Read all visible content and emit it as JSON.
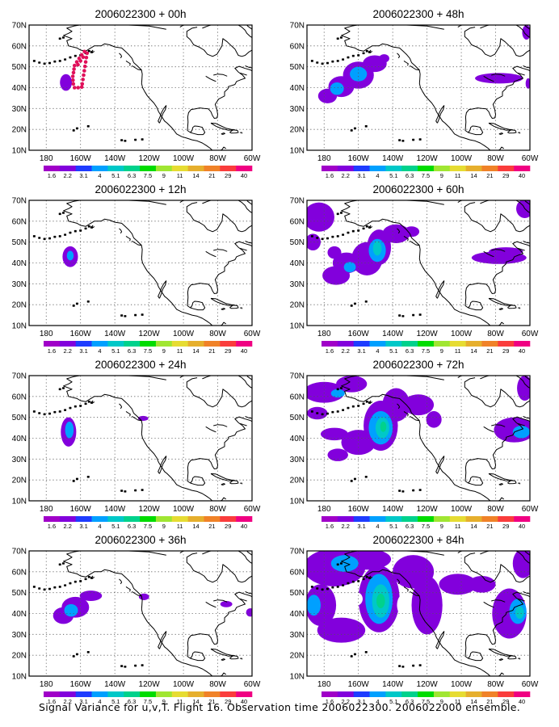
{
  "figure": {
    "caption": "Signal Variance for u,v,T. Flight 16. Observation time 2006022300. 2006022000 ensemble."
  },
  "axes": {
    "lat_ticks": [
      {
        "value": 10,
        "label": "10N"
      },
      {
        "value": 20,
        "label": "20N"
      },
      {
        "value": 30,
        "label": "30N"
      },
      {
        "value": 40,
        "label": "40N"
      },
      {
        "value": 50,
        "label": "50N"
      },
      {
        "value": 60,
        "label": "60N"
      },
      {
        "value": 70,
        "label": "70N"
      }
    ],
    "lon_ticks": [
      {
        "value": 180,
        "label": "180"
      },
      {
        "value": 200,
        "label": "160W"
      },
      {
        "value": 220,
        "label": "140W"
      },
      {
        "value": 240,
        "label": "120W"
      },
      {
        "value": 260,
        "label": "100W"
      },
      {
        "value": 280,
        "label": "80W"
      },
      {
        "value": 300,
        "label": "60W"
      }
    ],
    "lon_range_deg_east": [
      170,
      300
    ],
    "lat_range": [
      10,
      70
    ],
    "grid": "dotted"
  },
  "colorbar": {
    "labels": [
      "1.6",
      "2.2",
      "3.1",
      "4",
      "5.1",
      "6.3",
      "7.5",
      "9",
      "11",
      "14",
      "21",
      "29",
      "40"
    ],
    "colors": [
      "#a000c8",
      "#8200dc",
      "#1e3cff",
      "#00a0ff",
      "#00c8c8",
      "#00d28c",
      "#00dc00",
      "#a0e632",
      "#e6dc32",
      "#e6af2d",
      "#f08228",
      "#fa3c3c",
      "#f00082"
    ]
  },
  "flight_track": {
    "color": "#e0105a",
    "points": [
      [
        196.5,
        50.6
      ],
      [
        197.8,
        52.3
      ],
      [
        199.2,
        54.0
      ],
      [
        200.7,
        55.7
      ],
      [
        202.3,
        57.3
      ],
      [
        203.8,
        56.5
      ],
      [
        203.4,
        54.4
      ],
      [
        203.0,
        52.3
      ],
      [
        202.6,
        50.2
      ],
      [
        202.2,
        48.1
      ],
      [
        201.8,
        46.0
      ],
      [
        201.4,
        43.9
      ],
      [
        201.0,
        41.8
      ],
      [
        200.7,
        40.3
      ],
      [
        198.6,
        40.0
      ],
      [
        196.5,
        40.0
      ],
      [
        195.8,
        41.8
      ],
      [
        195.6,
        43.6
      ],
      [
        195.5,
        45.4
      ],
      [
        195.9,
        47.2
      ],
      [
        196.2,
        48.9
      ],
      [
        198.5,
        51.0
      ],
      [
        200.0,
        52.8
      ],
      [
        201.5,
        54.6
      ]
    ]
  },
  "panels": [
    {
      "title": "2006022300 + 00h",
      "blobs": [
        {
          "lon": 191.5,
          "lat": 42.5,
          "rlon": 3.5,
          "rlat": 4.0,
          "level": 1
        }
      ]
    },
    {
      "title": "2006022300 + 12h",
      "blobs": [
        {
          "lon": 194.0,
          "lat": 43.0,
          "rlon": 4.5,
          "rlat": 5.0,
          "level": 1
        },
        {
          "lon": 194.0,
          "lat": 43.5,
          "rlon": 2.0,
          "rlat": 2.3,
          "level": 2
        }
      ]
    },
    {
      "title": "2006022300 + 24h",
      "blobs": [
        {
          "lon": 193.0,
          "lat": 43.0,
          "rlon": 4.5,
          "rlat": 7.0,
          "level": 1
        },
        {
          "lon": 193.5,
          "lat": 44.0,
          "rlon": 2.5,
          "rlat": 4.0,
          "level": 2
        },
        {
          "lon": 236.5,
          "lat": 49.5,
          "rlon": 3.0,
          "rlat": 1.2,
          "level": 1
        }
      ]
    },
    {
      "title": "2006022300 + 36h",
      "blobs": [
        {
          "lon": 190.0,
          "lat": 39.0,
          "rlon": 6.0,
          "rlat": 4.0,
          "level": 1
        },
        {
          "lon": 197.0,
          "lat": 43.0,
          "rlon": 8.0,
          "rlat": 5.0,
          "level": 1
        },
        {
          "lon": 206.0,
          "lat": 48.5,
          "rlon": 6.5,
          "rlat": 2.5,
          "level": 1
        },
        {
          "lon": 194.5,
          "lat": 41.5,
          "rlon": 4.0,
          "rlat": 3.0,
          "level": 2
        },
        {
          "lon": 237.0,
          "lat": 48.0,
          "rlon": 3.0,
          "rlat": 1.6,
          "level": 1
        },
        {
          "lon": 285.0,
          "lat": 44.5,
          "rlon": 3.5,
          "rlat": 1.5,
          "level": 1
        },
        {
          "lon": 299.0,
          "lat": 40.5,
          "rlon": 2.5,
          "rlat": 2.0,
          "level": 1
        }
      ]
    },
    {
      "title": "2006022300 + 48h",
      "blobs": [
        {
          "lon": 182.0,
          "lat": 36.0,
          "rlon": 5.5,
          "rlat": 3.5,
          "level": 1
        },
        {
          "lon": 190.0,
          "lat": 40.5,
          "rlon": 7.5,
          "rlat": 5.0,
          "level": 1
        },
        {
          "lon": 200.0,
          "lat": 46.0,
          "rlon": 9.0,
          "rlat": 6.5,
          "level": 1
        },
        {
          "lon": 209.5,
          "lat": 51.5,
          "rlon": 7.0,
          "rlat": 4.0,
          "level": 1
        },
        {
          "lon": 215.0,
          "lat": 54.0,
          "rlon": 3.0,
          "rlat": 2.0,
          "level": 1
        },
        {
          "lon": 200.0,
          "lat": 46.5,
          "rlon": 5.0,
          "rlat": 3.5,
          "level": 2
        },
        {
          "lon": 187.5,
          "lat": 39.5,
          "rlon": 4.0,
          "rlat": 3.0,
          "level": 2
        },
        {
          "lon": 282.0,
          "lat": 44.5,
          "rlon": 14.0,
          "rlat": 2.5,
          "level": 1
        },
        {
          "lon": 298.0,
          "lat": 66.5,
          "rlon": 2.5,
          "rlat": 3.5,
          "level": 1
        },
        {
          "lon": 299.0,
          "lat": 42.0,
          "rlon": 1.5,
          "rlat": 2.5,
          "level": 1
        }
      ]
    },
    {
      "title": "2006022300 + 60h",
      "blobs": [
        {
          "lon": 177.0,
          "lat": 62.0,
          "rlon": 9.0,
          "rlat": 7.0,
          "level": 1
        },
        {
          "lon": 173.5,
          "lat": 50.0,
          "rlon": 4.5,
          "rlat": 4.0,
          "level": 1
        },
        {
          "lon": 187.0,
          "lat": 34.0,
          "rlon": 8.0,
          "rlat": 4.5,
          "level": 1
        },
        {
          "lon": 193.0,
          "lat": 40.0,
          "rlon": 8.0,
          "rlat": 5.0,
          "level": 1
        },
        {
          "lon": 205.0,
          "lat": 42.0,
          "rlon": 9.0,
          "rlat": 8.0,
          "level": 1
        },
        {
          "lon": 212.0,
          "lat": 47.5,
          "rlon": 7.0,
          "rlat": 8.5,
          "level": 1
        },
        {
          "lon": 222.0,
          "lat": 54.0,
          "rlon": 8.0,
          "rlat": 4.5,
          "level": 1
        },
        {
          "lon": 231.0,
          "lat": 55.0,
          "rlon": 4.5,
          "rlat": 2.5,
          "level": 1
        },
        {
          "lon": 186.0,
          "lat": 45.0,
          "rlon": 4.0,
          "rlat": 3.0,
          "level": 1
        },
        {
          "lon": 211.0,
          "lat": 46.0,
          "rlon": 5.0,
          "rlat": 5.5,
          "level": 2
        },
        {
          "lon": 211.0,
          "lat": 47.0,
          "rlon": 2.5,
          "rlat": 3.5,
          "level": 3
        },
        {
          "lon": 195.0,
          "lat": 38.0,
          "rlon": 3.5,
          "rlat": 2.5,
          "level": 2
        },
        {
          "lon": 282.0,
          "lat": 42.5,
          "rlon": 16.0,
          "rlat": 3.0,
          "level": 1
        },
        {
          "lon": 286.0,
          "lat": 45.5,
          "rlon": 10.0,
          "rlat": 2.0,
          "level": 1
        },
        {
          "lon": 297.0,
          "lat": 66.0,
          "rlon": 5.0,
          "rlat": 4.5,
          "level": 1
        }
      ]
    },
    {
      "title": "2006022300 + 72h",
      "blobs": [
        {
          "lon": 180.0,
          "lat": 62.0,
          "rlon": 12.0,
          "rlat": 5.0,
          "level": 1
        },
        {
          "lon": 196.0,
          "lat": 66.0,
          "rlon": 9.0,
          "rlat": 4.0,
          "level": 1
        },
        {
          "lon": 176.0,
          "lat": 52.0,
          "rlon": 6.0,
          "rlat": 3.0,
          "level": 1
        },
        {
          "lon": 186.0,
          "lat": 42.0,
          "rlon": 8.0,
          "rlat": 3.0,
          "level": 1
        },
        {
          "lon": 188.0,
          "lat": 32.0,
          "rlon": 6.0,
          "rlat": 3.0,
          "level": 1
        },
        {
          "lon": 200.0,
          "lat": 38.0,
          "rlon": 10.0,
          "rlat": 6.0,
          "level": 1
        },
        {
          "lon": 213.0,
          "lat": 46.0,
          "rlon": 10.0,
          "rlat": 12.0,
          "level": 1
        },
        {
          "lon": 222.0,
          "lat": 56.0,
          "rlon": 8.0,
          "rlat": 8.0,
          "level": 1
        },
        {
          "lon": 235.0,
          "lat": 56.0,
          "rlon": 9.0,
          "rlat": 5.0,
          "level": 1
        },
        {
          "lon": 244.0,
          "lat": 49.0,
          "rlon": 4.5,
          "rlat": 4.0,
          "level": 1
        },
        {
          "lon": 213.0,
          "lat": 45.0,
          "rlon": 7.0,
          "rlat": 8.0,
          "level": 2
        },
        {
          "lon": 214.0,
          "lat": 45.0,
          "rlon": 4.0,
          "rlat": 5.0,
          "level": 3
        },
        {
          "lon": 214.5,
          "lat": 45.5,
          "rlon": 1.8,
          "rlat": 2.5,
          "level": 4
        },
        {
          "lon": 188.0,
          "lat": 61.5,
          "rlon": 4.0,
          "rlat": 2.0,
          "level": 2
        },
        {
          "lon": 291.0,
          "lat": 44.0,
          "rlon": 12.0,
          "rlat": 6.0,
          "level": 1
        },
        {
          "lon": 295.0,
          "lat": 43.0,
          "rlon": 5.0,
          "rlat": 3.0,
          "level": 2
        },
        {
          "lon": 297.0,
          "lat": 64.0,
          "rlon": 4.5,
          "rlat": 6.0,
          "level": 1
        }
      ]
    },
    {
      "title": "2006022300 + 84h",
      "blobs": [
        {
          "lon": 186.0,
          "lat": 62.0,
          "rlon": 18.0,
          "rlat": 9.0,
          "level": 1
        },
        {
          "lon": 205.0,
          "lat": 66.0,
          "rlon": 14.0,
          "rlat": 5.0,
          "level": 1
        },
        {
          "lon": 178.0,
          "lat": 44.0,
          "rlon": 9.0,
          "rlat": 10.0,
          "level": 1
        },
        {
          "lon": 190.0,
          "lat": 32.0,
          "rlon": 14.0,
          "rlat": 6.0,
          "level": 1
        },
        {
          "lon": 212.0,
          "lat": 47.0,
          "rlon": 12.0,
          "rlat": 16.0,
          "level": 1
        },
        {
          "lon": 232.0,
          "lat": 60.0,
          "rlon": 12.0,
          "rlat": 8.0,
          "level": 1
        },
        {
          "lon": 240.0,
          "lat": 44.0,
          "rlon": 9.0,
          "rlat": 14.0,
          "level": 1
        },
        {
          "lon": 258.0,
          "lat": 54.0,
          "rlon": 11.0,
          "rlat": 5.0,
          "level": 1
        },
        {
          "lon": 272.0,
          "lat": 54.0,
          "rlon": 8.0,
          "rlat": 4.0,
          "level": 1
        },
        {
          "lon": 288.0,
          "lat": 40.0,
          "rlon": 10.0,
          "rlat": 12.0,
          "level": 1
        },
        {
          "lon": 296.0,
          "lat": 64.0,
          "rlon": 6.0,
          "rlat": 7.0,
          "level": 1
        },
        {
          "lon": 212.0,
          "lat": 47.0,
          "rlon": 8.0,
          "rlat": 12.0,
          "level": 2
        },
        {
          "lon": 213.0,
          "lat": 46.0,
          "rlon": 5.0,
          "rlat": 8.0,
          "level": 3
        },
        {
          "lon": 213.0,
          "lat": 46.0,
          "rlon": 2.5,
          "rlat": 3.5,
          "level": 4
        },
        {
          "lon": 192.0,
          "lat": 64.0,
          "rlon": 8.0,
          "rlat": 4.0,
          "level": 2
        },
        {
          "lon": 174.0,
          "lat": 44.0,
          "rlon": 4.0,
          "rlat": 5.0,
          "level": 2
        },
        {
          "lon": 293.0,
          "lat": 41.0,
          "rlon": 5.0,
          "rlat": 6.0,
          "level": 2
        },
        {
          "lon": 294.0,
          "lat": 40.5,
          "rlon": 2.5,
          "rlat": 3.0,
          "level": 3
        }
      ],
      "holes": [
        {
          "lon": 198.0,
          "lat": 47.0,
          "rlon": 4.5,
          "rlat": 3.5
        },
        {
          "lon": 226.0,
          "lat": 44.0,
          "rlon": 3.5,
          "rlat": 5.0
        },
        {
          "lon": 267.0,
          "lat": 47.0,
          "rlon": 6.0,
          "rlat": 2.5
        }
      ]
    }
  ]
}
